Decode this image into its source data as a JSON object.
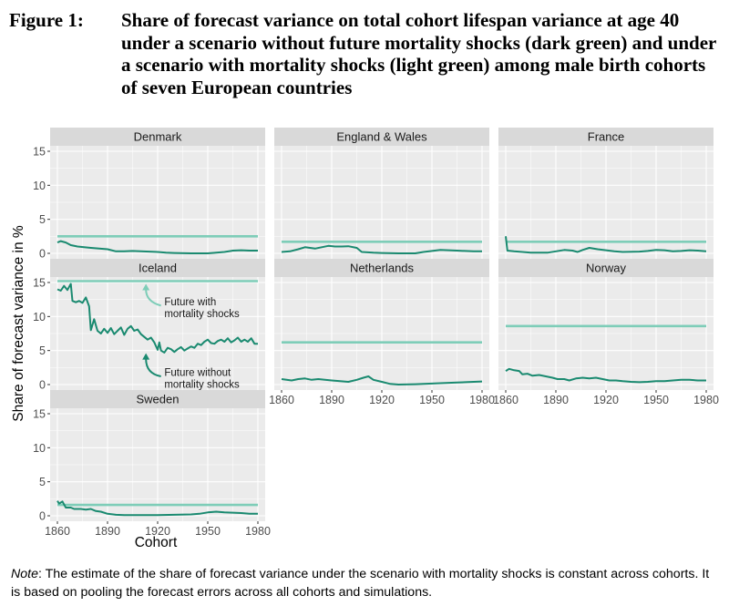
{
  "figure": {
    "label": "Figure 1:",
    "title": "Share of forecast variance on total cohort lifespan variance at age 40 under a scenario without future mortality shocks (dark green) and under a scenario with mortality shocks (light green) among male birth cohorts of seven European countries"
  },
  "note": {
    "label": "Note",
    "text": ": The estimate of the share of forecast variance under the scenario with mortality shocks is constant across cohorts. It is based on pooling the forecast errors across all cohorts and simulations."
  },
  "colors": {
    "without_shocks": "#1a8a70",
    "with_shocks": "#7ecdb8",
    "panel_bg": "#ebebeb",
    "strip_bg": "#d9d9d9",
    "grid": "#ffffff"
  },
  "chart_data": {
    "type": "line",
    "xlabel": "Cohort",
    "ylabel": "Share of forecast variance in %",
    "xlim": [
      1860,
      1980
    ],
    "ylim": [
      0,
      15
    ],
    "x_ticks": [
      "1860",
      "1890",
      "1920",
      "1950",
      "1980"
    ],
    "y_ticks": [
      "0",
      "5",
      "10",
      "15"
    ],
    "annotations": [
      {
        "panel": "Iceland",
        "text": [
          "Future with",
          "mortality shocks"
        ]
      },
      {
        "panel": "Iceland",
        "text": [
          "Future without",
          "mortality shocks"
        ]
      }
    ],
    "panels": [
      {
        "name": "Denmark",
        "with_shocks": 2.5,
        "without_shocks": [
          [
            1860,
            1.6
          ],
          [
            1862,
            1.8
          ],
          [
            1865,
            1.6
          ],
          [
            1868,
            1.2
          ],
          [
            1872,
            1.0
          ],
          [
            1876,
            0.9
          ],
          [
            1880,
            0.8
          ],
          [
            1885,
            0.7
          ],
          [
            1890,
            0.6
          ],
          [
            1895,
            0.3
          ],
          [
            1900,
            0.3
          ],
          [
            1905,
            0.35
          ],
          [
            1910,
            0.3
          ],
          [
            1915,
            0.25
          ],
          [
            1920,
            0.2
          ],
          [
            1925,
            0.1
          ],
          [
            1930,
            0.05
          ],
          [
            1940,
            0.0
          ],
          [
            1950,
            0.0
          ],
          [
            1955,
            0.1
          ],
          [
            1960,
            0.2
          ],
          [
            1965,
            0.4
          ],
          [
            1970,
            0.45
          ],
          [
            1975,
            0.4
          ],
          [
            1980,
            0.4
          ]
        ]
      },
      {
        "name": "England & Wales",
        "with_shocks": 1.7,
        "without_shocks": [
          [
            1860,
            0.2
          ],
          [
            1865,
            0.3
          ],
          [
            1870,
            0.6
          ],
          [
            1874,
            0.9
          ],
          [
            1877,
            0.8
          ],
          [
            1880,
            0.7
          ],
          [
            1884,
            0.9
          ],
          [
            1888,
            1.1
          ],
          [
            1892,
            1.0
          ],
          [
            1896,
            1.0
          ],
          [
            1900,
            1.05
          ],
          [
            1905,
            0.8
          ],
          [
            1908,
            0.2
          ],
          [
            1915,
            0.1
          ],
          [
            1920,
            0.05
          ],
          [
            1930,
            0.0
          ],
          [
            1940,
            0.0
          ],
          [
            1945,
            0.2
          ],
          [
            1950,
            0.35
          ],
          [
            1955,
            0.5
          ],
          [
            1960,
            0.45
          ],
          [
            1965,
            0.4
          ],
          [
            1970,
            0.35
          ],
          [
            1975,
            0.3
          ],
          [
            1980,
            0.3
          ]
        ]
      },
      {
        "name": "France",
        "with_shocks": 1.7,
        "without_shocks": [
          [
            1860,
            2.5
          ],
          [
            1861,
            0.4
          ],
          [
            1865,
            0.3
          ],
          [
            1875,
            0.1
          ],
          [
            1885,
            0.1
          ],
          [
            1890,
            0.3
          ],
          [
            1895,
            0.5
          ],
          [
            1900,
            0.4
          ],
          [
            1903,
            0.2
          ],
          [
            1906,
            0.5
          ],
          [
            1910,
            0.8
          ],
          [
            1915,
            0.6
          ],
          [
            1920,
            0.45
          ],
          [
            1925,
            0.3
          ],
          [
            1930,
            0.2
          ],
          [
            1940,
            0.25
          ],
          [
            1945,
            0.35
          ],
          [
            1950,
            0.5
          ],
          [
            1955,
            0.45
          ],
          [
            1960,
            0.3
          ],
          [
            1965,
            0.35
          ],
          [
            1970,
            0.45
          ],
          [
            1975,
            0.4
          ],
          [
            1980,
            0.3
          ]
        ]
      },
      {
        "name": "Iceland",
        "with_shocks": 15.2,
        "without_shocks": [
          [
            1860,
            14.0
          ],
          [
            1862,
            13.8
          ],
          [
            1864,
            14.5
          ],
          [
            1866,
            13.9
          ],
          [
            1868,
            14.8
          ],
          [
            1869,
            12.3
          ],
          [
            1871,
            12.1
          ],
          [
            1873,
            12.3
          ],
          [
            1875,
            12.0
          ],
          [
            1877,
            12.8
          ],
          [
            1879,
            11.5
          ],
          [
            1880,
            8.0
          ],
          [
            1882,
            9.6
          ],
          [
            1884,
            7.9
          ],
          [
            1886,
            7.5
          ],
          [
            1888,
            8.2
          ],
          [
            1890,
            7.6
          ],
          [
            1892,
            8.3
          ],
          [
            1894,
            7.4
          ],
          [
            1896,
            7.9
          ],
          [
            1898,
            8.4
          ],
          [
            1900,
            7.3
          ],
          [
            1902,
            8.2
          ],
          [
            1904,
            8.6
          ],
          [
            1906,
            7.9
          ],
          [
            1908,
            8.1
          ],
          [
            1910,
            7.4
          ],
          [
            1912,
            7.0
          ],
          [
            1914,
            6.6
          ],
          [
            1916,
            6.9
          ],
          [
            1918,
            6.2
          ],
          [
            1920,
            5.1
          ],
          [
            1921,
            6.2
          ],
          [
            1922,
            5.0
          ],
          [
            1924,
            4.7
          ],
          [
            1926,
            5.4
          ],
          [
            1928,
            5.2
          ],
          [
            1930,
            4.8
          ],
          [
            1932,
            5.2
          ],
          [
            1934,
            5.5
          ],
          [
            1936,
            5.0
          ],
          [
            1938,
            5.3
          ],
          [
            1940,
            5.6
          ],
          [
            1942,
            5.4
          ],
          [
            1944,
            6.0
          ],
          [
            1946,
            5.8
          ],
          [
            1948,
            6.3
          ],
          [
            1950,
            6.6
          ],
          [
            1952,
            6.1
          ],
          [
            1954,
            6.0
          ],
          [
            1956,
            6.4
          ],
          [
            1958,
            6.6
          ],
          [
            1960,
            6.3
          ],
          [
            1962,
            6.8
          ],
          [
            1964,
            6.2
          ],
          [
            1966,
            6.5
          ],
          [
            1968,
            6.9
          ],
          [
            1970,
            6.3
          ],
          [
            1972,
            6.6
          ],
          [
            1974,
            6.3
          ],
          [
            1976,
            6.8
          ],
          [
            1978,
            6.0
          ],
          [
            1980,
            6.0
          ]
        ]
      },
      {
        "name": "Netherlands",
        "with_shocks": 6.2,
        "without_shocks": [
          [
            1860,
            0.8
          ],
          [
            1863,
            0.7
          ],
          [
            1866,
            0.6
          ],
          [
            1870,
            0.8
          ],
          [
            1874,
            0.9
          ],
          [
            1878,
            0.7
          ],
          [
            1882,
            0.8
          ],
          [
            1886,
            0.7
          ],
          [
            1890,
            0.6
          ],
          [
            1895,
            0.5
          ],
          [
            1900,
            0.4
          ],
          [
            1905,
            0.7
          ],
          [
            1909,
            1.0
          ],
          [
            1912,
            1.2
          ],
          [
            1915,
            0.7
          ],
          [
            1920,
            0.4
          ],
          [
            1925,
            0.1
          ],
          [
            1930,
            0.0
          ],
          [
            1940,
            0.05
          ],
          [
            1945,
            0.1
          ],
          [
            1950,
            0.15
          ],
          [
            1955,
            0.2
          ],
          [
            1960,
            0.25
          ],
          [
            1965,
            0.3
          ],
          [
            1970,
            0.35
          ],
          [
            1975,
            0.4
          ],
          [
            1980,
            0.45
          ]
        ]
      },
      {
        "name": "Norway",
        "with_shocks": 8.6,
        "without_shocks": [
          [
            1860,
            2.0
          ],
          [
            1862,
            2.3
          ],
          [
            1865,
            2.1
          ],
          [
            1868,
            2.0
          ],
          [
            1870,
            1.5
          ],
          [
            1873,
            1.6
          ],
          [
            1876,
            1.3
          ],
          [
            1880,
            1.4
          ],
          [
            1884,
            1.2
          ],
          [
            1888,
            1.0
          ],
          [
            1891,
            0.8
          ],
          [
            1895,
            0.8
          ],
          [
            1898,
            0.6
          ],
          [
            1902,
            0.9
          ],
          [
            1906,
            1.0
          ],
          [
            1910,
            0.9
          ],
          [
            1914,
            1.0
          ],
          [
            1918,
            0.8
          ],
          [
            1922,
            0.6
          ],
          [
            1926,
            0.6
          ],
          [
            1930,
            0.5
          ],
          [
            1935,
            0.4
          ],
          [
            1940,
            0.35
          ],
          [
            1945,
            0.4
          ],
          [
            1950,
            0.5
          ],
          [
            1955,
            0.5
          ],
          [
            1960,
            0.6
          ],
          [
            1965,
            0.7
          ],
          [
            1970,
            0.7
          ],
          [
            1975,
            0.6
          ],
          [
            1980,
            0.6
          ]
        ]
      },
      {
        "name": "Sweden",
        "with_shocks": 1.6,
        "without_shocks": [
          [
            1860,
            2.2
          ],
          [
            1861,
            1.8
          ],
          [
            1863,
            2.1
          ],
          [
            1865,
            1.2
          ],
          [
            1868,
            1.2
          ],
          [
            1870,
            1.0
          ],
          [
            1874,
            1.0
          ],
          [
            1877,
            0.9
          ],
          [
            1880,
            1.0
          ],
          [
            1883,
            0.7
          ],
          [
            1886,
            0.6
          ],
          [
            1890,
            0.3
          ],
          [
            1895,
            0.15
          ],
          [
            1900,
            0.1
          ],
          [
            1910,
            0.1
          ],
          [
            1920,
            0.1
          ],
          [
            1930,
            0.15
          ],
          [
            1940,
            0.2
          ],
          [
            1945,
            0.3
          ],
          [
            1950,
            0.5
          ],
          [
            1955,
            0.6
          ],
          [
            1960,
            0.5
          ],
          [
            1965,
            0.45
          ],
          [
            1970,
            0.4
          ],
          [
            1975,
            0.3
          ],
          [
            1980,
            0.3
          ]
        ]
      }
    ]
  }
}
